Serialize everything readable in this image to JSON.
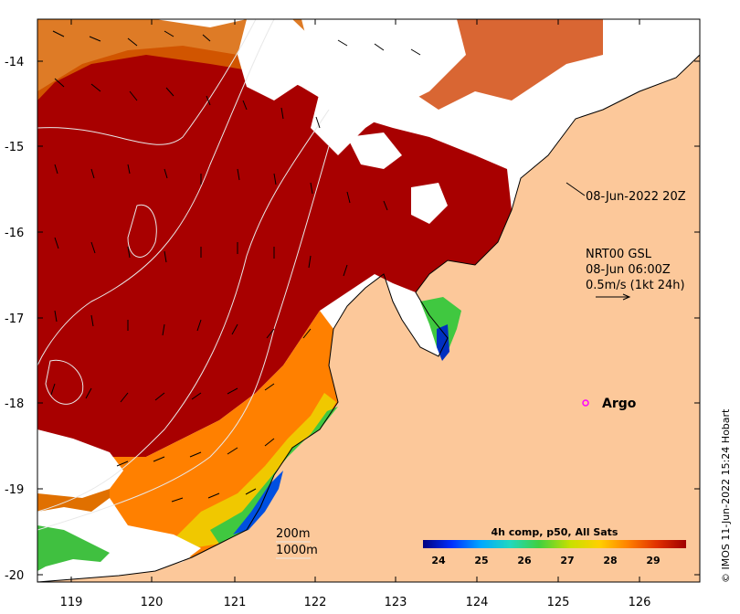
{
  "map": {
    "y_axis_ticks": [
      "-14",
      "-15",
      "-16",
      "-17",
      "-18",
      "-19",
      "-20"
    ],
    "x_axis_ticks": [
      "119",
      "120",
      "121",
      "122",
      "123",
      "124",
      "125",
      "126"
    ],
    "scene_timestamp": "08-Jun-2022 20Z",
    "current_model": {
      "name": "NRT00 GSL",
      "time": "08-Jun 06:00Z",
      "scale": "0.5m/s (1kt 24h)"
    },
    "argo_label": "Argo",
    "bathymetry": {
      "contour_1": "200m",
      "contour_2": "1000m"
    },
    "colorbar": {
      "title": "4h comp, p50, All Sats",
      "ticks": [
        "24",
        "25",
        "26",
        "27",
        "28",
        "29"
      ],
      "colors": [
        "#00007f",
        "#0030ff",
        "#00a8ff",
        "#20d8c0",
        "#40d040",
        "#c8e000",
        "#ffd000",
        "#ff8000",
        "#e03000",
        "#a00000"
      ]
    },
    "credit": "© IMOS 11-Jun-2022 15:24 Hobart",
    "colors": {
      "land": "#fcc89a",
      "warm_sst": "#a80000",
      "no_data": "#ffffff",
      "argo_marker": "#ff00ff"
    }
  }
}
